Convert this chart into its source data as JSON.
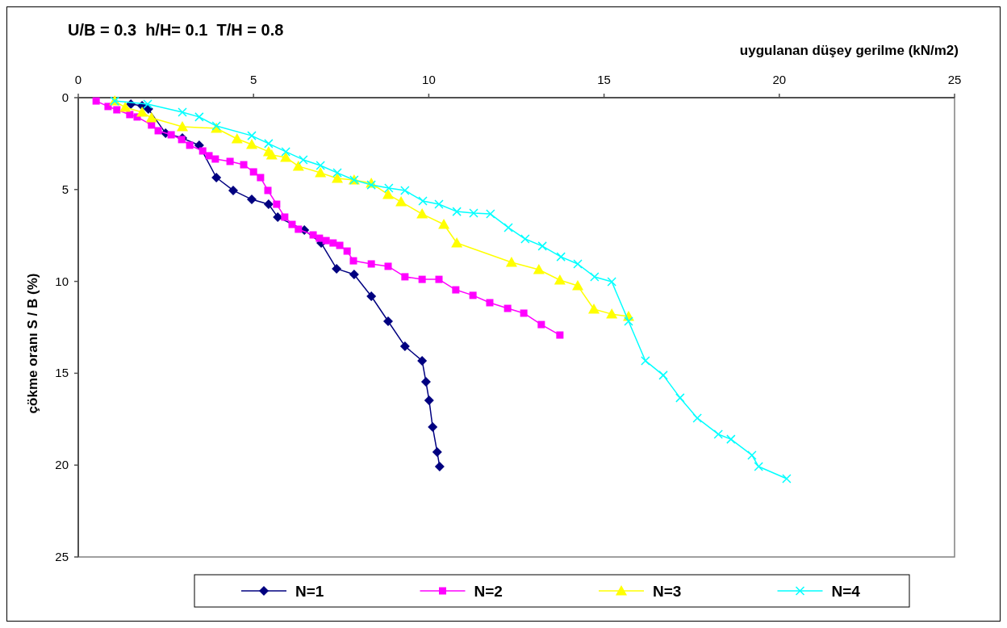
{
  "chart_data": {
    "type": "line",
    "title": "U/B = 0.3  h/H= 0.1  T/H = 0.8",
    "xlabel": "uygulanan düşey gerilme (kN/m2)",
    "ylabel": "çökme oranı S / B (%)",
    "xlim": [
      0,
      25
    ],
    "xticks": [
      0,
      5,
      10,
      15,
      20,
      25
    ],
    "ylim": [
      25,
      0
    ],
    "yticks": [
      0,
      5,
      10,
      15,
      20,
      25
    ],
    "grid": false,
    "legend": "bottom",
    "series": [
      {
        "name": "N=1",
        "color": "#000080",
        "marker": "diamond",
        "x": [
          1.5,
          1.82,
          2.0,
          2.49,
          2.97,
          3.45,
          3.94,
          4.42,
          4.95,
          5.43,
          5.69,
          6.45,
          6.93,
          7.37,
          7.87,
          8.36,
          8.84,
          9.32,
          9.81,
          9.92,
          10.01,
          10.11,
          10.24,
          10.31
        ],
        "values": [
          0.35,
          0.44,
          0.62,
          1.93,
          2.2,
          2.59,
          4.35,
          5.05,
          5.54,
          5.8,
          6.5,
          7.21,
          7.91,
          9.31,
          9.62,
          10.81,
          12.17,
          13.53,
          14.32,
          15.47,
          16.48,
          17.93,
          19.29,
          20.08
        ]
      },
      {
        "name": "N=2",
        "color": "#ff00ff",
        "marker": "square",
        "x": [
          0.51,
          0.85,
          1.1,
          1.47,
          1.68,
          2.09,
          2.28,
          2.65,
          2.95,
          3.18,
          3.55,
          3.73,
          3.91,
          4.33,
          4.72,
          5.0,
          5.2,
          5.41,
          5.66,
          5.89,
          6.1,
          6.28,
          6.7,
          6.88,
          7.07,
          7.27,
          7.46,
          7.67,
          7.85,
          8.36,
          8.84,
          9.32,
          9.81,
          10.29,
          10.77,
          11.26,
          11.74,
          12.25,
          12.71,
          13.21,
          13.74
        ],
        "values": [
          0.18,
          0.48,
          0.66,
          0.92,
          1.05,
          1.49,
          1.8,
          2.02,
          2.28,
          2.59,
          2.9,
          3.16,
          3.34,
          3.47,
          3.65,
          4.04,
          4.35,
          5.05,
          5.8,
          6.5,
          6.9,
          7.16,
          7.47,
          7.65,
          7.78,
          7.91,
          8.04,
          8.35,
          8.88,
          9.05,
          9.18,
          9.75,
          9.89,
          9.89,
          10.46,
          10.76,
          11.16,
          11.47,
          11.73,
          12.35,
          12.92
        ]
      },
      {
        "name": "N=3",
        "color": "#ffff00",
        "marker": "triangle",
        "x": [
          1.04,
          1.34,
          1.82,
          2.09,
          2.97,
          3.94,
          4.53,
          4.95,
          5.43,
          5.52,
          5.92,
          6.28,
          6.91,
          7.39,
          7.87,
          8.36,
          8.84,
          9.21,
          9.81,
          10.43,
          10.8,
          12.36,
          13.14,
          13.74,
          14.25,
          14.71,
          15.22,
          15.7
        ],
        "values": [
          0.18,
          0.53,
          0.79,
          1.1,
          1.58,
          1.67,
          2.24,
          2.55,
          2.94,
          3.12,
          3.25,
          3.73,
          4.09,
          4.39,
          4.48,
          4.66,
          5.27,
          5.67,
          6.33,
          6.9,
          7.91,
          8.96,
          9.36,
          9.93,
          10.24,
          11.51,
          11.78,
          11.91
        ]
      },
      {
        "name": "N=4",
        "color": "#00ffff",
        "marker": "cross",
        "x": [
          1.04,
          1.98,
          2.97,
          3.45,
          3.94,
          4.95,
          5.43,
          5.92,
          6.42,
          6.91,
          7.39,
          7.87,
          8.36,
          8.86,
          9.32,
          9.83,
          10.29,
          10.8,
          11.28,
          11.76,
          12.27,
          12.75,
          13.24,
          13.77,
          14.25,
          14.73,
          15.22,
          15.7,
          16.18,
          16.69,
          17.17,
          17.66,
          18.26,
          18.62,
          19.22,
          19.41,
          20.21
        ],
        "values": [
          0.18,
          0.35,
          0.79,
          1.05,
          1.54,
          2.07,
          2.5,
          2.94,
          3.38,
          3.69,
          4.09,
          4.48,
          4.75,
          4.92,
          5.05,
          5.62,
          5.8,
          6.2,
          6.28,
          6.33,
          7.07,
          7.69,
          8.08,
          8.66,
          9.05,
          9.75,
          10.02,
          12.17,
          14.32,
          15.11,
          16.34,
          17.44,
          18.32,
          18.59,
          19.46,
          20.08,
          20.74
        ]
      }
    ]
  }
}
